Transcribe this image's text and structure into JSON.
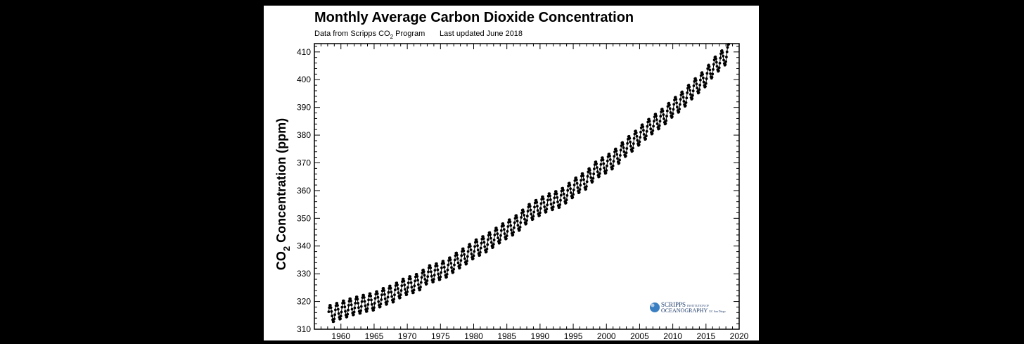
{
  "chart_data": {
    "type": "scatter",
    "title": "Monthly Average Carbon Dioxide Concentration",
    "subtitle_source_prefix": "Data from Scripps CO",
    "subtitle_source_subscript": "2",
    "subtitle_source_suffix": " Program",
    "subtitle_updated": "Last updated June 2018",
    "ylabel_prefix": "CO",
    "ylabel_subscript": "2",
    "ylabel_suffix": " Concentration (ppm)",
    "xlabel": "",
    "xlim": [
      1956,
      2020
    ],
    "ylim": [
      310,
      413
    ],
    "xticks": [
      1960,
      1965,
      1970,
      1975,
      1980,
      1985,
      1990,
      1995,
      2000,
      2005,
      2010,
      2015,
      2020
    ],
    "yticks": [
      310,
      320,
      330,
      340,
      350,
      360,
      370,
      380,
      390,
      400,
      410
    ],
    "grid": false,
    "marker": "filled circle with connecting line",
    "series_color": "#000000",
    "seasonal_amplitude_ppm": 3.2,
    "series": [
      {
        "annual_means": {
          "x": [
            1958,
            1959,
            1960,
            1961,
            1962,
            1963,
            1964,
            1965,
            1966,
            1967,
            1968,
            1969,
            1970,
            1971,
            1972,
            1973,
            1974,
            1975,
            1976,
            1977,
            1978,
            1979,
            1980,
            1981,
            1982,
            1983,
            1984,
            1985,
            1986,
            1987,
            1988,
            1989,
            1990,
            1991,
            1992,
            1993,
            1994,
            1995,
            1996,
            1997,
            1998,
            1999,
            2000,
            2001,
            2002,
            2003,
            2004,
            2005,
            2006,
            2007,
            2008,
            2009,
            2010,
            2011,
            2012,
            2013,
            2014,
            2015,
            2016,
            2017,
            2018
          ],
          "y": [
            315.3,
            315.9,
            316.9,
            317.6,
            318.4,
            318.9,
            319.6,
            320.0,
            321.3,
            322.2,
            323.0,
            324.6,
            325.7,
            326.3,
            327.4,
            329.7,
            330.2,
            331.1,
            332.0,
            333.8,
            335.4,
            336.8,
            338.7,
            339.9,
            341.1,
            342.8,
            344.4,
            345.9,
            347.2,
            349.0,
            351.4,
            352.9,
            354.2,
            355.5,
            356.3,
            357.1,
            358.8,
            360.8,
            362.6,
            363.7,
            366.6,
            368.3,
            369.5,
            371.1,
            373.2,
            375.8,
            377.5,
            379.8,
            381.9,
            383.8,
            385.6,
            387.4,
            389.9,
            391.6,
            393.9,
            396.5,
            398.6,
            400.8,
            404.2,
            406.5,
            408.7
          ]
        }
      }
    ]
  },
  "logo": {
    "line1": "SCRIPPS",
    "line1_small": "INSTITUTION OF",
    "line2": "OCEANOGRAPHY",
    "line2_small": "UC San Diego",
    "color": "#1c3a6b",
    "accent": "#3a7fc1"
  }
}
